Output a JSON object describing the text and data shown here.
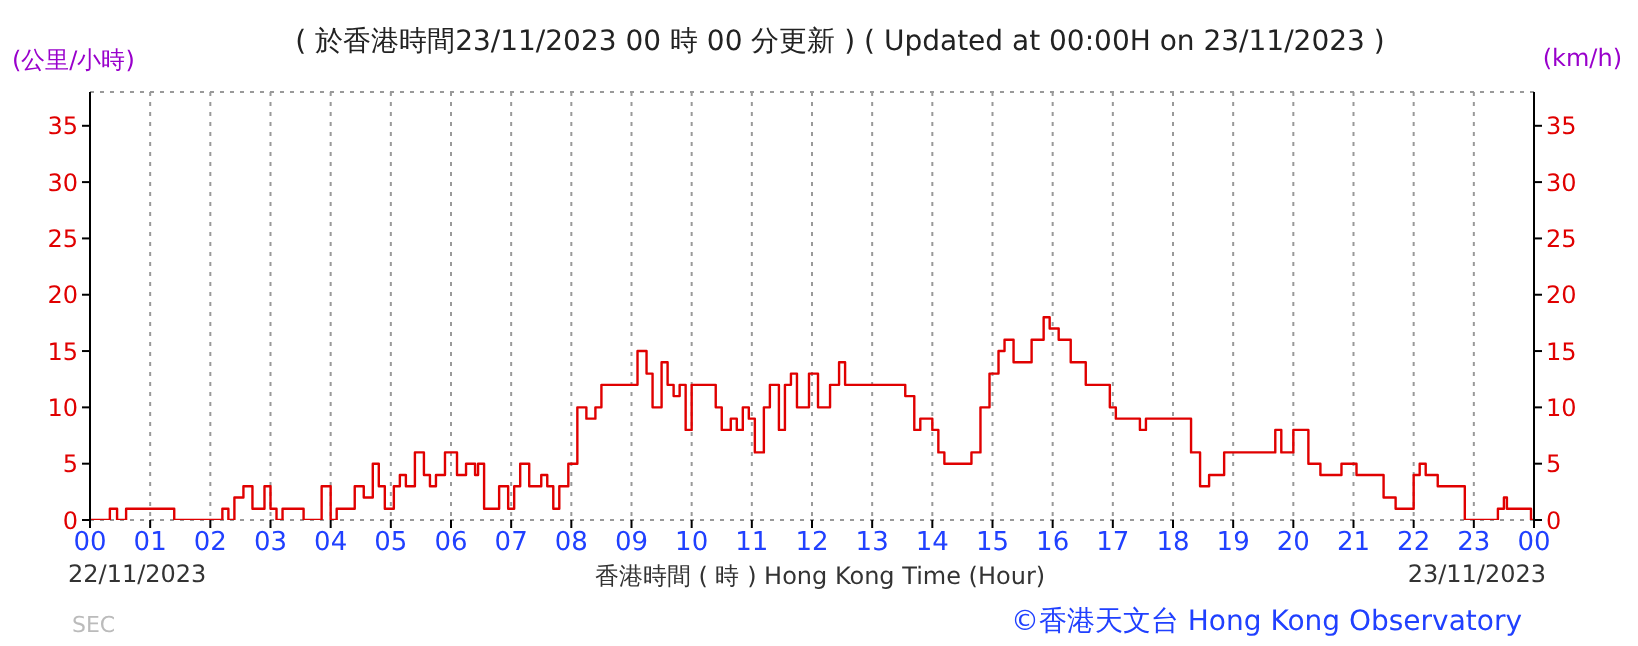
{
  "chart_data": {
    "type": "step",
    "title": "( 於香港時間23/11/2023 00 時 00 分更新 ) ( Updated at 00:00H on 23/11/2023 )",
    "ylabel": "(公里/小時)",
    "y2label": "(km/h)",
    "xlabel": "香港時間 ( 時 ) Hong Kong Time (Hour)",
    "annotations": [
      "22/11/2023",
      "23/11/2023",
      "©香港天文台 Hong Kong Observatory",
      "SEC"
    ],
    "x": [
      0,
      0.33,
      0.45,
      0.6,
      1.4,
      2.2,
      2.3,
      2.4,
      2.55,
      2.7,
      2.9,
      3.0,
      3.1,
      3.2,
      3.55,
      3.85,
      4.0,
      4.1,
      4.4,
      4.55,
      4.7,
      4.8,
      4.9,
      5.05,
      5.15,
      5.25,
      5.4,
      5.55,
      5.65,
      5.75,
      5.9,
      6.1,
      6.25,
      6.4,
      6.45,
      6.55,
      6.8,
      6.95,
      7.05,
      7.15,
      7.3,
      7.5,
      7.6,
      7.7,
      7.8,
      7.95,
      8.1,
      8.25,
      8.4,
      8.5,
      9.1,
      9.25,
      9.35,
      9.5,
      9.6,
      9.7,
      9.8,
      9.9,
      10.0,
      10.4,
      10.5,
      10.65,
      10.75,
      10.85,
      10.95,
      11.05,
      11.2,
      11.3,
      11.45,
      11.55,
      11.65,
      11.75,
      11.95,
      12.1,
      12.3,
      12.45,
      12.55,
      13.55,
      13.7,
      13.8,
      14.0,
      14.1,
      14.2,
      14.65,
      14.8,
      14.95,
      15.1,
      15.2,
      15.35,
      15.65,
      15.85,
      15.95,
      16.1,
      16.3,
      16.55,
      16.95,
      17.05,
      17.45,
      17.55,
      18.3,
      18.45,
      18.6,
      18.85,
      19.7,
      19.8,
      20.0,
      20.25,
      20.45,
      20.8,
      21.05,
      21.5,
      21.7,
      22.0,
      22.1,
      22.2,
      22.4,
      22.85,
      23.4,
      23.5,
      23.55,
      23.95,
      24
    ],
    "values": [
      0,
      1,
      0,
      1,
      0,
      1,
      0,
      2,
      3,
      1,
      3,
      1,
      0,
      1,
      0,
      3,
      0,
      1,
      3,
      2,
      5,
      3,
      1,
      3,
      4,
      3,
      6,
      4,
      3,
      4,
      6,
      4,
      5,
      4,
      5,
      1,
      3,
      1,
      3,
      5,
      3,
      4,
      3,
      1,
      3,
      5,
      10,
      9,
      10,
      12,
      15,
      13,
      10,
      14,
      12,
      11,
      12,
      8,
      12,
      10,
      8,
      9,
      8,
      10,
      9,
      6,
      10,
      12,
      8,
      12,
      13,
      10,
      13,
      10,
      12,
      14,
      12,
      11,
      8,
      9,
      8,
      6,
      5,
      6,
      10,
      13,
      15,
      16,
      14,
      16,
      18,
      17,
      16,
      14,
      12,
      10,
      9,
      8,
      9,
      6,
      3,
      4,
      6,
      8,
      6,
      8,
      5,
      4,
      5,
      4,
      2,
      1,
      4,
      5,
      4,
      3,
      0,
      1,
      2,
      1,
      0,
      0
    ],
    "color": "#e00000",
    "xlim": [
      0,
      24
    ],
    "xticks": [
      {
        "value": 0,
        "label": "00"
      },
      {
        "value": 1,
        "label": "01"
      },
      {
        "value": 2,
        "label": "02"
      },
      {
        "value": 3,
        "label": "03"
      },
      {
        "value": 4,
        "label": "04"
      },
      {
        "value": 5,
        "label": "05"
      },
      {
        "value": 6,
        "label": "06"
      },
      {
        "value": 7,
        "label": "07"
      },
      {
        "value": 8,
        "label": "08"
      },
      {
        "value": 9,
        "label": "09"
      },
      {
        "value": 10,
        "label": "10"
      },
      {
        "value": 11,
        "label": "11"
      },
      {
        "value": 12,
        "label": "12"
      },
      {
        "value": 13,
        "label": "13"
      },
      {
        "value": 14,
        "label": "14"
      },
      {
        "value": 15,
        "label": "15"
      },
      {
        "value": 16,
        "label": "16"
      },
      {
        "value": 17,
        "label": "17"
      },
      {
        "value": 18,
        "label": "18"
      },
      {
        "value": 19,
        "label": "19"
      },
      {
        "value": 20,
        "label": "20"
      },
      {
        "value": 21,
        "label": "21"
      },
      {
        "value": 22,
        "label": "22"
      },
      {
        "value": 23,
        "label": "23"
      },
      {
        "value": 24,
        "label": "00"
      }
    ],
    "ylim": [
      0,
      38
    ],
    "yticks": [
      0,
      5,
      10,
      15,
      20,
      25,
      30,
      35
    ],
    "y2lim": [
      0,
      38
    ],
    "y2ticks": [
      0,
      5,
      10,
      15,
      20,
      25,
      30,
      35
    ],
    "grid": true,
    "marker": "none"
  }
}
